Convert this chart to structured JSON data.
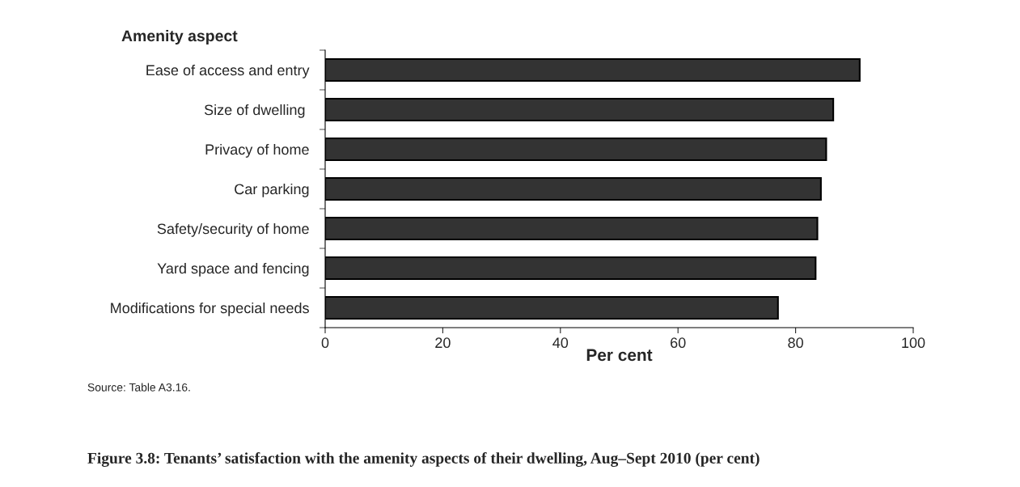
{
  "chart_data": {
    "type": "bar",
    "orientation": "horizontal",
    "title": "Figure 3.8: Tenants’ satisfaction with the amenity aspects of their dwelling, Aug–Sept 2010 (per cent)",
    "ylabel": "Amenity aspect",
    "xlabel": "Per cent",
    "categories": [
      "Ease of access and entry",
      "Size of dwelling ",
      "Privacy of home",
      "Car parking",
      "Safety/security of home",
      "Yard space and fencing",
      "Modifications for special needs"
    ],
    "values": [
      90.9,
      86.4,
      85.2,
      84.3,
      83.7,
      83.4,
      77.0
    ],
    "color": "#333333",
    "xlim": [
      0,
      100
    ],
    "xticks": [
      0,
      20,
      40,
      60,
      80,
      100
    ],
    "grid": false,
    "legend": false,
    "annotations": [
      "Source: Table A3.16."
    ]
  }
}
